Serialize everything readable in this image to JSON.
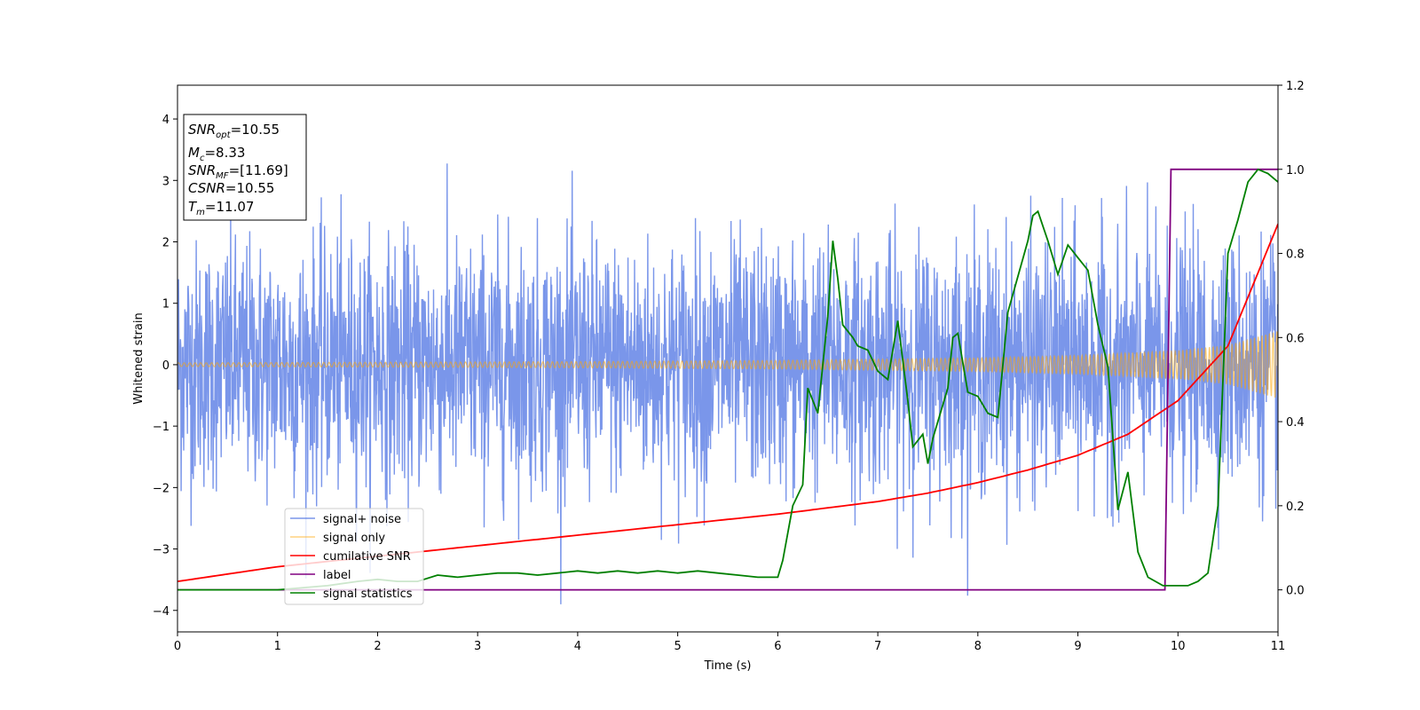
{
  "chart_data": {
    "type": "line",
    "xlabel": "Time (s)",
    "ylabel": "Whitened strain",
    "xlim": [
      0,
      11
    ],
    "ylim": [
      -4.35,
      4.55
    ],
    "y2lim": [
      -0.1,
      1.2
    ],
    "grid": false,
    "xticks": [
      "0",
      "1",
      "2",
      "3",
      "4",
      "5",
      "6",
      "7",
      "8",
      "9",
      "10",
      "11"
    ],
    "yticks": [
      "−4",
      "−3",
      "−2",
      "−1",
      "0",
      "1",
      "2",
      "3",
      "4"
    ],
    "y2ticks": [
      "0.0",
      "0.2",
      "0.4",
      "0.6",
      "0.8",
      "1.0",
      "1.2"
    ],
    "legend_position": "lower-left",
    "info_box": {
      "snr_opt": {
        "sym": "SNR",
        "sub": "opt",
        "value": "=10.55"
      },
      "mc": {
        "sym": "M",
        "sub": "c",
        "value": "=8.33"
      },
      "snr_mf": {
        "sym": "SNR",
        "sub": "MF",
        "value": "=[11.69]"
      },
      "csnr": {
        "sym": "CSNR",
        "sub": "",
        "value": "=10.55"
      },
      "tm": {
        "sym": "T",
        "sub": "m",
        "value": "=11.07"
      }
    },
    "series": [
      {
        "name": "signal+ noise",
        "axis": "left",
        "color": "#4169e1",
        "description_values": {
          "noise_sigma": 1.0,
          "typical_extremes": [
            -3.9,
            4.2
          ]
        }
      },
      {
        "name": "signal only",
        "axis": "left",
        "color": "#ffa500",
        "envelope": {
          "x": [
            0,
            2,
            4,
            6,
            8,
            9,
            10,
            10.5,
            11
          ],
          "amp": [
            0.03,
            0.04,
            0.05,
            0.07,
            0.11,
            0.15,
            0.23,
            0.32,
            0.55
          ]
        }
      },
      {
        "name": "cumilative SNR",
        "axis": "right",
        "color": "#ff0000",
        "x": [
          0,
          1,
          2,
          3,
          4,
          5,
          6,
          6.5,
          7,
          7.5,
          8,
          8.5,
          9,
          9.5,
          10,
          10.5,
          11
        ],
        "y": [
          0.02,
          0.055,
          0.08,
          0.105,
          0.13,
          0.155,
          0.18,
          0.195,
          0.21,
          0.23,
          0.255,
          0.285,
          0.32,
          0.37,
          0.45,
          0.58,
          0.87
        ]
      },
      {
        "name": "label",
        "axis": "right",
        "color": "#800080",
        "x": [
          0,
          9.87,
          9.93,
          11
        ],
        "y": [
          0,
          0,
          1,
          1
        ]
      },
      {
        "name": "signal statistics",
        "axis": "right",
        "color": "#008000",
        "x": [
          0,
          0.5,
          1,
          1.5,
          1.8,
          2,
          2.2,
          2.4,
          2.6,
          2.8,
          3,
          3.2,
          3.4,
          3.6,
          3.8,
          4,
          4.2,
          4.4,
          4.6,
          4.8,
          5,
          5.2,
          5.4,
          5.6,
          5.8,
          6,
          6.05,
          6.15,
          6.25,
          6.3,
          6.4,
          6.5,
          6.55,
          6.6,
          6.65,
          6.75,
          6.8,
          6.9,
          7,
          7.1,
          7.2,
          7.3,
          7.35,
          7.45,
          7.5,
          7.55,
          7.7,
          7.75,
          7.8,
          7.9,
          8,
          8.1,
          8.2,
          8.3,
          8.5,
          8.55,
          8.6,
          8.7,
          8.8,
          8.9,
          9,
          9.1,
          9.2,
          9.3,
          9.4,
          9.5,
          9.6,
          9.7,
          9.85,
          10,
          10.1,
          10.2,
          10.3,
          10.4,
          10.5,
          10.6,
          10.7,
          10.8,
          10.9,
          11
        ],
        "y": [
          0.0,
          0.0,
          0.0,
          0.01,
          0.02,
          0.025,
          0.02,
          0.02,
          0.035,
          0.03,
          0.035,
          0.04,
          0.04,
          0.035,
          0.04,
          0.045,
          0.04,
          0.045,
          0.04,
          0.045,
          0.04,
          0.045,
          0.04,
          0.035,
          0.03,
          0.03,
          0.07,
          0.2,
          0.25,
          0.48,
          0.42,
          0.65,
          0.83,
          0.74,
          0.63,
          0.6,
          0.58,
          0.57,
          0.52,
          0.5,
          0.64,
          0.45,
          0.34,
          0.37,
          0.3,
          0.36,
          0.48,
          0.6,
          0.61,
          0.47,
          0.46,
          0.42,
          0.41,
          0.66,
          0.83,
          0.89,
          0.9,
          0.83,
          0.75,
          0.82,
          0.79,
          0.76,
          0.63,
          0.53,
          0.19,
          0.28,
          0.09,
          0.03,
          0.01,
          0.01,
          0.01,
          0.02,
          0.04,
          0.2,
          0.8,
          0.88,
          0.97,
          1.0,
          0.99,
          0.97
        ]
      }
    ]
  }
}
